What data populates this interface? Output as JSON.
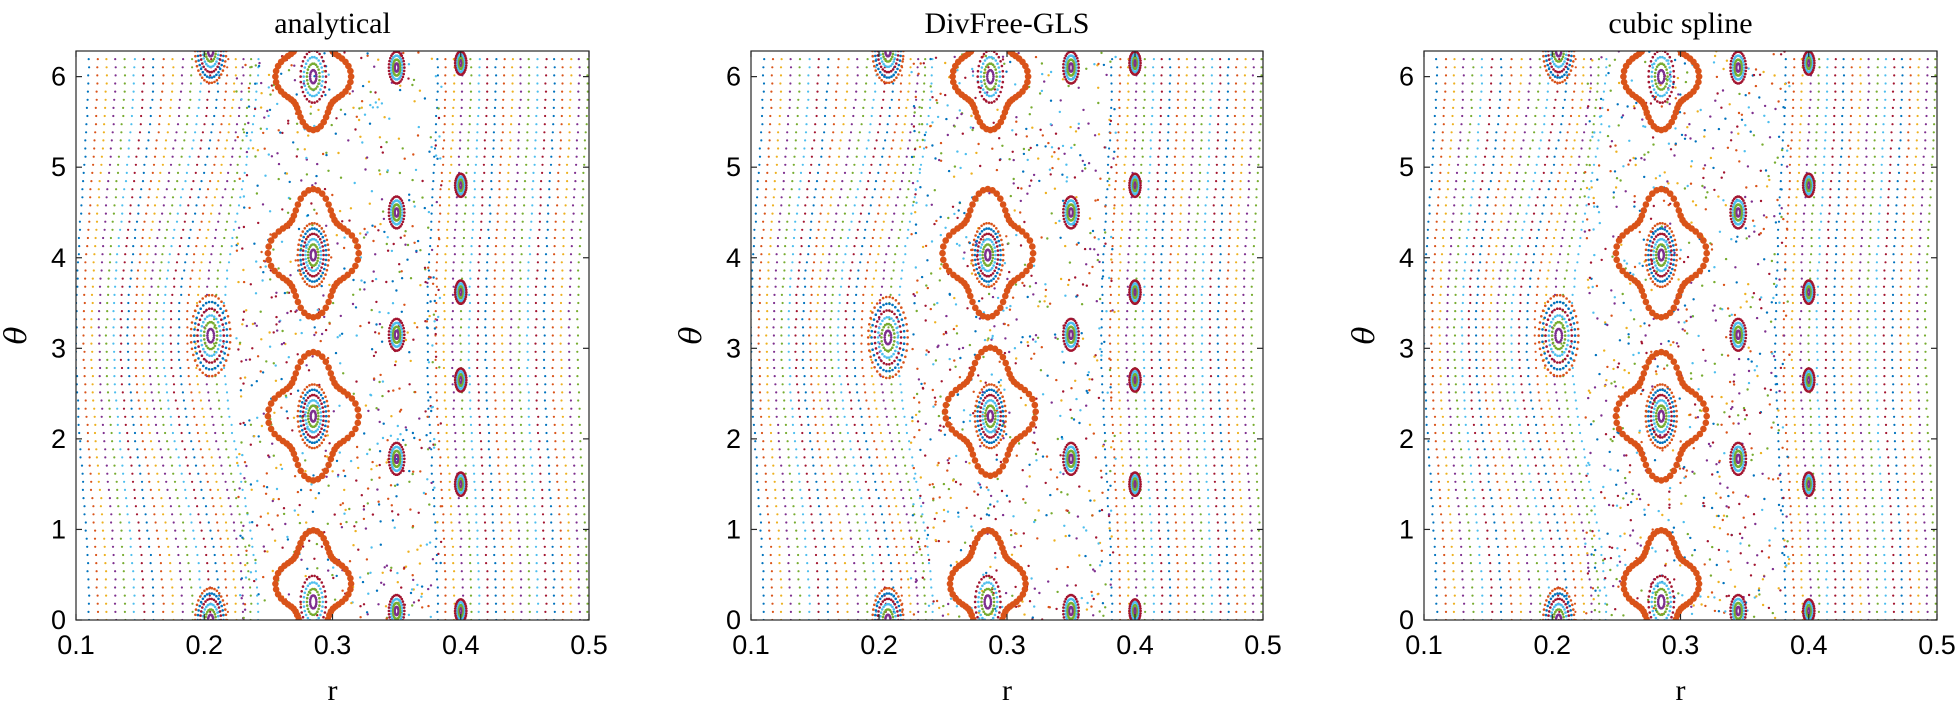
{
  "chart_data": [
    {
      "type": "scatter",
      "title": "analytical",
      "xlabel": "r",
      "ylabel": "θ",
      "xlim": [
        0.1,
        0.5
      ],
      "ylim": [
        0,
        6.283
      ],
      "xticks": [
        "0.1",
        "0.2",
        "0.3",
        "0.4",
        "0.5"
      ],
      "yticks": [
        "0",
        "1",
        "2",
        "3",
        "4",
        "5",
        "6"
      ],
      "grid": false,
      "islands": [
        {
          "r": 0.205,
          "theta": 3.14,
          "size": 0.028
        },
        {
          "r": 0.205,
          "theta": 0.0,
          "size": 0.022
        },
        {
          "r": 0.205,
          "theta": 6.283,
          "size": 0.022
        },
        {
          "r": 0.285,
          "theta": 4.03,
          "size": 0.022
        },
        {
          "r": 0.285,
          "theta": 2.25,
          "size": 0.022
        },
        {
          "r": 0.285,
          "theta": 0.2,
          "size": 0.018
        },
        {
          "r": 0.285,
          "theta": 6.0,
          "size": 0.018
        },
        {
          "r": 0.35,
          "theta": 4.5,
          "size": 0.011
        },
        {
          "r": 0.35,
          "theta": 3.15,
          "size": 0.011
        },
        {
          "r": 0.35,
          "theta": 1.78,
          "size": 0.011
        },
        {
          "r": 0.35,
          "theta": 0.1,
          "size": 0.011
        },
        {
          "r": 0.35,
          "theta": 6.1,
          "size": 0.011
        },
        {
          "r": 0.4,
          "theta": 4.8,
          "size": 0.008
        },
        {
          "r": 0.4,
          "theta": 3.62,
          "size": 0.008
        },
        {
          "r": 0.4,
          "theta": 2.65,
          "size": 0.008
        },
        {
          "r": 0.4,
          "theta": 1.5,
          "size": 0.008
        },
        {
          "r": 0.4,
          "theta": 0.1,
          "size": 0.008
        },
        {
          "r": 0.4,
          "theta": 6.15,
          "size": 0.008
        }
      ],
      "separatrix_orange": [
        {
          "r": 0.285,
          "theta": 4.05,
          "size": 0.03
        },
        {
          "r": 0.285,
          "theta": 2.25,
          "size": 0.03
        },
        {
          "r": 0.285,
          "theta": 0.4,
          "size": 0.025
        },
        {
          "r": 0.285,
          "theta": 6.0,
          "size": 0.025
        }
      ]
    },
    {
      "type": "scatter",
      "title": "DivFree-GLS",
      "xlabel": "r",
      "ylabel": "θ",
      "xlim": [
        0.1,
        0.5
      ],
      "ylim": [
        0,
        6.283
      ],
      "xticks": [
        "0.1",
        "0.2",
        "0.3",
        "0.4",
        "0.5"
      ],
      "yticks": [
        "0",
        "1",
        "2",
        "3",
        "4",
        "5",
        "6"
      ],
      "grid": false,
      "islands": [
        {
          "r": 0.207,
          "theta": 3.12,
          "size": 0.028
        },
        {
          "r": 0.207,
          "theta": 0.0,
          "size": 0.022
        },
        {
          "r": 0.207,
          "theta": 6.283,
          "size": 0.022
        },
        {
          "r": 0.285,
          "theta": 4.03,
          "size": 0.022
        },
        {
          "r": 0.287,
          "theta": 2.25,
          "size": 0.022
        },
        {
          "r": 0.285,
          "theta": 0.2,
          "size": 0.018
        },
        {
          "r": 0.287,
          "theta": 6.0,
          "size": 0.018
        },
        {
          "r": 0.35,
          "theta": 4.5,
          "size": 0.011
        },
        {
          "r": 0.35,
          "theta": 3.15,
          "size": 0.011
        },
        {
          "r": 0.35,
          "theta": 1.78,
          "size": 0.011
        },
        {
          "r": 0.35,
          "theta": 0.1,
          "size": 0.011
        },
        {
          "r": 0.35,
          "theta": 6.1,
          "size": 0.011
        },
        {
          "r": 0.4,
          "theta": 4.8,
          "size": 0.008
        },
        {
          "r": 0.4,
          "theta": 3.62,
          "size": 0.008
        },
        {
          "r": 0.4,
          "theta": 2.65,
          "size": 0.008
        },
        {
          "r": 0.4,
          "theta": 1.5,
          "size": 0.008
        },
        {
          "r": 0.4,
          "theta": 0.1,
          "size": 0.008
        },
        {
          "r": 0.4,
          "theta": 6.15,
          "size": 0.008
        }
      ],
      "separatrix_orange": [
        {
          "r": 0.285,
          "theta": 4.05,
          "size": 0.03
        },
        {
          "r": 0.287,
          "theta": 2.3,
          "size": 0.03
        },
        {
          "r": 0.285,
          "theta": 0.4,
          "size": 0.025
        },
        {
          "r": 0.287,
          "theta": 6.0,
          "size": 0.025
        }
      ]
    },
    {
      "type": "scatter",
      "title": "cubic spline",
      "xlabel": "r",
      "ylabel": "θ",
      "xlim": [
        0.1,
        0.5
      ],
      "ylim": [
        0,
        6.283
      ],
      "xticks": [
        "0.1",
        "0.2",
        "0.3",
        "0.4",
        "0.5"
      ],
      "yticks": [
        "0",
        "1",
        "2",
        "3",
        "4",
        "5",
        "6"
      ],
      "grid": false,
      "islands": [
        {
          "r": 0.205,
          "theta": 3.14,
          "size": 0.028
        },
        {
          "r": 0.205,
          "theta": 0.0,
          "size": 0.022
        },
        {
          "r": 0.205,
          "theta": 6.283,
          "size": 0.022
        },
        {
          "r": 0.285,
          "theta": 4.03,
          "size": 0.022
        },
        {
          "r": 0.285,
          "theta": 2.25,
          "size": 0.022
        },
        {
          "r": 0.285,
          "theta": 0.2,
          "size": 0.018
        },
        {
          "r": 0.285,
          "theta": 6.0,
          "size": 0.018
        },
        {
          "r": 0.345,
          "theta": 4.5,
          "size": 0.011
        },
        {
          "r": 0.345,
          "theta": 3.15,
          "size": 0.011
        },
        {
          "r": 0.345,
          "theta": 1.78,
          "size": 0.011
        },
        {
          "r": 0.345,
          "theta": 0.1,
          "size": 0.011
        },
        {
          "r": 0.345,
          "theta": 6.1,
          "size": 0.011
        },
        {
          "r": 0.4,
          "theta": 4.8,
          "size": 0.008
        },
        {
          "r": 0.4,
          "theta": 3.62,
          "size": 0.008
        },
        {
          "r": 0.4,
          "theta": 2.65,
          "size": 0.008
        },
        {
          "r": 0.4,
          "theta": 1.5,
          "size": 0.008
        },
        {
          "r": 0.4,
          "theta": 0.1,
          "size": 0.008
        },
        {
          "r": 0.4,
          "theta": 6.15,
          "size": 0.008
        }
      ],
      "separatrix_orange": [
        {
          "r": 0.285,
          "theta": 4.05,
          "size": 0.03
        },
        {
          "r": 0.285,
          "theta": 2.25,
          "size": 0.03
        },
        {
          "r": 0.285,
          "theta": 0.4,
          "size": 0.025
        },
        {
          "r": 0.285,
          "theta": 6.0,
          "size": 0.025
        }
      ]
    }
  ],
  "palette": [
    "#0072BD",
    "#D95319",
    "#EDB120",
    "#7E2F8E",
    "#77AC30",
    "#4DBEEE",
    "#A2142F"
  ]
}
